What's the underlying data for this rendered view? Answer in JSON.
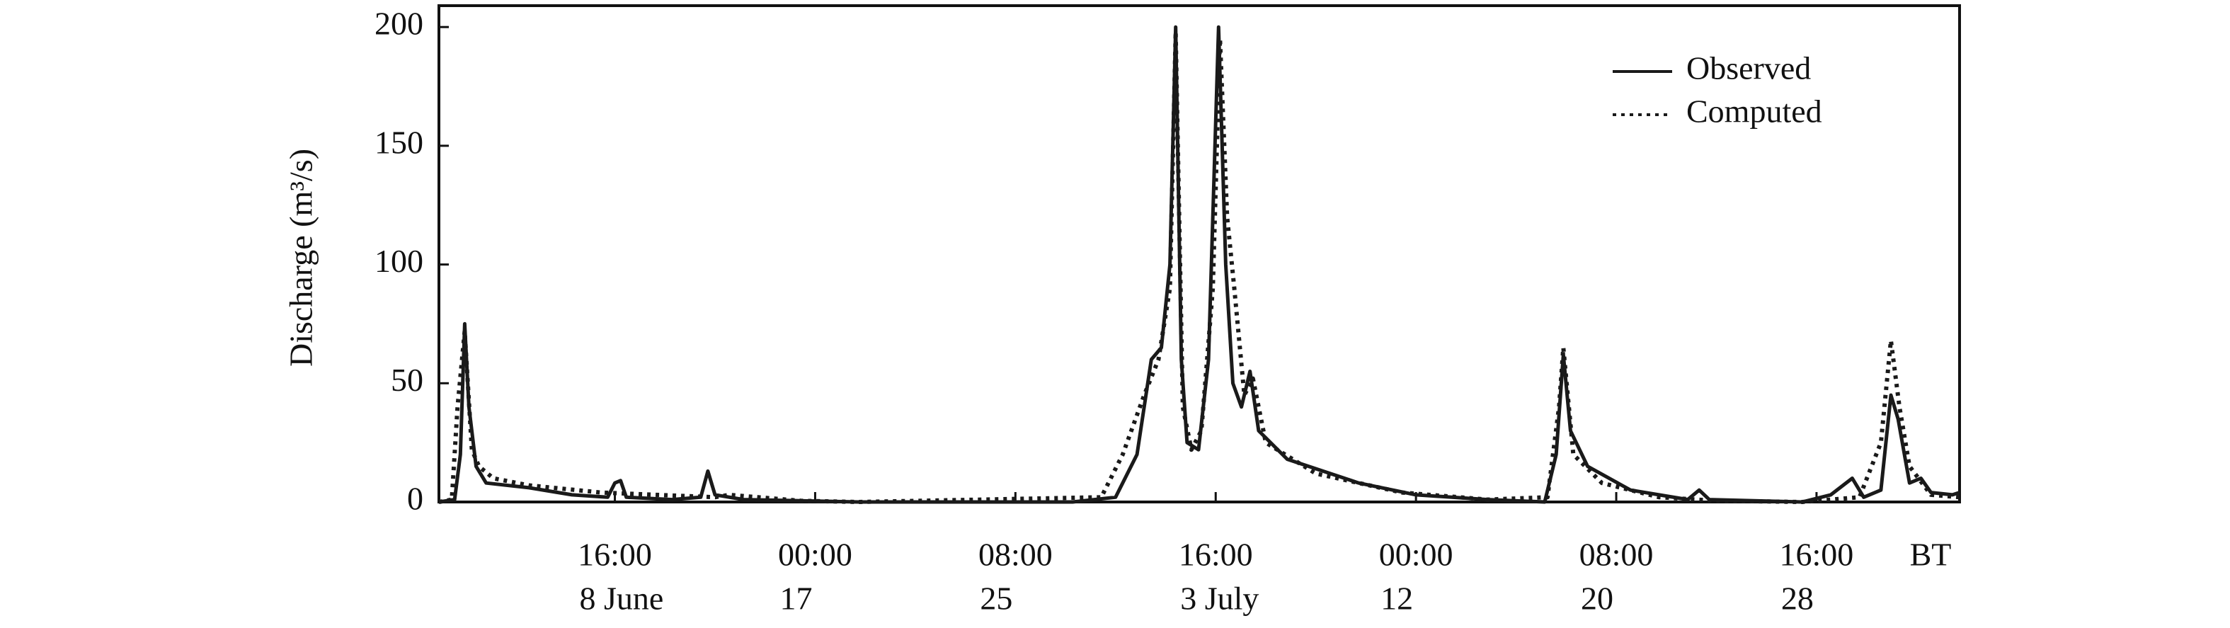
{
  "chart_data": {
    "type": "line",
    "y_label": "Discharge (m³/s)",
    "xlim": [
      17,
      1080
    ],
    "ylim": [
      0,
      209
    ],
    "yticks": [
      0,
      50,
      100,
      150,
      200
    ],
    "xticks": [
      {
        "value": 140,
        "label": "16:00"
      },
      {
        "value": 280,
        "label": "00:00"
      },
      {
        "value": 420,
        "label": "08:00"
      },
      {
        "value": 560,
        "label": "16:00"
      },
      {
        "value": 700,
        "label": "00:00"
      },
      {
        "value": 840,
        "label": "08:00"
      },
      {
        "value": 980,
        "label": "16:00"
      }
    ],
    "xtick_dates": [
      "8 June",
      "17",
      "25",
      "3 July",
      "12",
      "20",
      "28"
    ],
    "x_unit_label": "BT",
    "legend": "top-right",
    "series": [
      {
        "name": "Observed",
        "color": "#1a1a1a",
        "style": "solid",
        "x": [
          17,
          28,
          32,
          35,
          38,
          43,
          50,
          80,
          110,
          135,
          140,
          144,
          148,
          180,
          200,
          205,
          210,
          230,
          270,
          310,
          460,
          490,
          505,
          515,
          522,
          528,
          532,
          536,
          540,
          548,
          555,
          562,
          567,
          572,
          578,
          584,
          590,
          610,
          660,
          700,
          750,
          790,
          798,
          803,
          808,
          820,
          850,
          890,
          898,
          905,
          970,
          990,
          1005,
          1013,
          1025,
          1032,
          1037,
          1045,
          1053,
          1060,
          1075,
          1080
        ],
        "values": [
          0,
          1,
          20,
          75,
          40,
          15,
          8,
          6,
          3,
          2,
          8,
          9,
          2,
          1,
          2,
          13,
          3,
          1,
          0.5,
          0,
          0,
          2,
          20,
          60,
          65,
          100,
          200,
          60,
          25,
          22,
          60,
          200,
          100,
          50,
          40,
          55,
          30,
          18,
          8,
          3,
          1,
          0,
          20,
          62,
          30,
          15,
          5,
          1,
          5,
          1,
          0,
          3,
          10,
          2,
          5,
          45,
          35,
          8,
          10,
          4,
          3,
          4
        ]
      },
      {
        "name": "Computed",
        "color": "#1a1a1a",
        "style": "dotted",
        "x": [
          17,
          26,
          30,
          35,
          40,
          45,
          55,
          80,
          130,
          210,
          220,
          270,
          310,
          480,
          495,
          510,
          520,
          528,
          532,
          537,
          543,
          550,
          558,
          563,
          568,
          573,
          580,
          586,
          595,
          630,
          690,
          750,
          792,
          800,
          803,
          810,
          830,
          870,
          910,
          970,
          1010,
          1025,
          1032,
          1038,
          1045,
          1060,
          1080
        ],
        "values": [
          0,
          1,
          40,
          72,
          22,
          15,
          10,
          7,
          4,
          2,
          3,
          0.5,
          0,
          2,
          20,
          45,
          60,
          90,
          198,
          40,
          22,
          30,
          90,
          195,
          120,
          90,
          45,
          52,
          25,
          12,
          4,
          1,
          2,
          40,
          65,
          20,
          8,
          2,
          0.5,
          0,
          2,
          25,
          68,
          40,
          15,
          3,
          2
        ]
      }
    ]
  }
}
